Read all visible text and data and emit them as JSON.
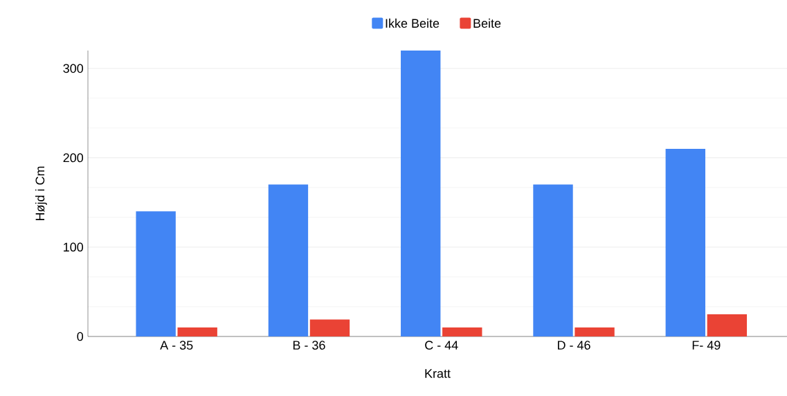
{
  "chart_data": {
    "type": "bar",
    "xlabel": "Kratt",
    "ylabel": "Højd i Cm",
    "categories": [
      "A - 35",
      "B - 36",
      "C - 44",
      "D - 46",
      "F- 49"
    ],
    "series": [
      {
        "name": "Ikke Beite",
        "color": "#4285f4",
        "values": [
          140,
          170,
          320,
          170,
          210
        ]
      },
      {
        "name": "Beite",
        "color": "#ea4335",
        "values": [
          10,
          19,
          10,
          10,
          25
        ]
      }
    ],
    "ylim": [
      0,
      320
    ],
    "yticks": [
      0,
      100,
      200,
      300
    ],
    "grid": "y",
    "legend": "top"
  }
}
